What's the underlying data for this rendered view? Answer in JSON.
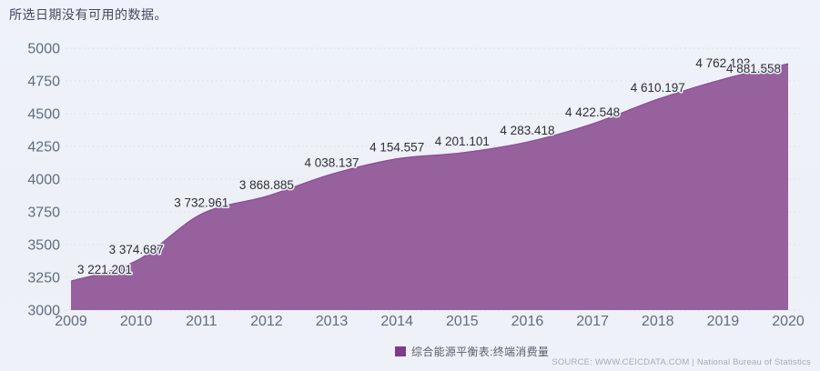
{
  "message": "所选日期没有可用的数据。",
  "legend": {
    "label": "综合能源平衡表:终端消费量"
  },
  "source": "SOURCE: WWW.CEICDATA.COM | National Bureau of Statistics",
  "colors": {
    "background": "#edf0f7",
    "area_fill": "#97619e",
    "area_stroke": "#8b4f95",
    "legend_swatch": "#7e3a8e",
    "grid_line": "#d9dde6",
    "axis_text": "#616c7c",
    "value_label_text": "#2f2f36",
    "message_text": "#45485f",
    "source_text": "#a6abb6"
  },
  "chart_data": {
    "type": "area",
    "title": "",
    "xlabel": "",
    "ylabel": "",
    "categories": [
      "2009",
      "2010",
      "2011",
      "2012",
      "2013",
      "2014",
      "2015",
      "2016",
      "2017",
      "2018",
      "2019",
      "2020"
    ],
    "series": [
      {
        "name": "综合能源平衡表:终端消费量",
        "values": [
          3221.201,
          3374.687,
          3732.961,
          3868.885,
          4038.137,
          4154.557,
          4201.101,
          4283.418,
          4422.548,
          4610.197,
          4762.193,
          4881.558
        ]
      }
    ],
    "value_labels": [
      "3 221.201",
      "3 374.687",
      "3 732.961",
      "3 868.885",
      "4 038.137",
      "4 154.557",
      "4 201.101",
      "4 283.418",
      "4 422.548",
      "4 610.197",
      "4 762.193",
      "4 881.558"
    ],
    "ylim": [
      3000,
      5000
    ],
    "yticks": [
      3000,
      3250,
      3500,
      3750,
      4000,
      4250,
      4500,
      4750,
      5000
    ],
    "grid": "horizontal-dashed",
    "legend_position": "bottom-center"
  }
}
